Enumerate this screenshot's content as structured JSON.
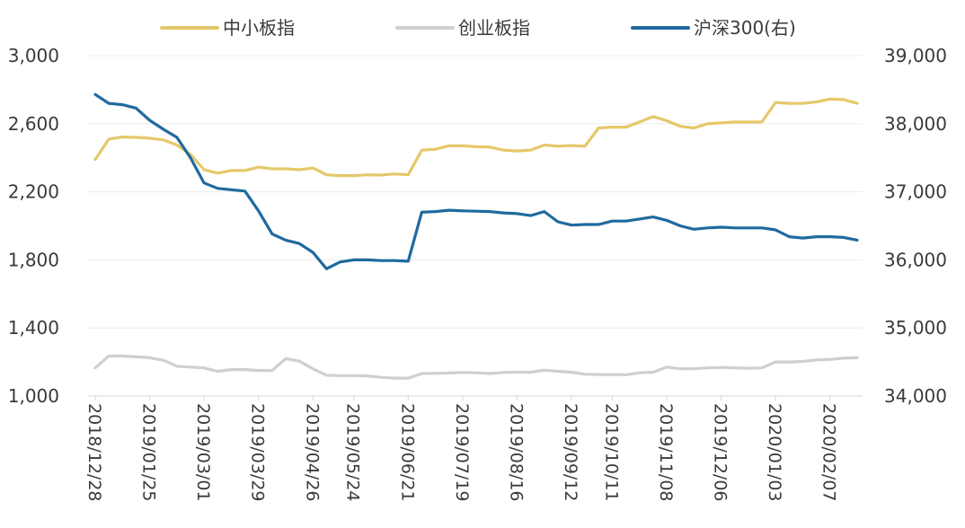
{
  "chart_data": {
    "type": "line",
    "x": [
      "2018/12/28",
      "2019/01/04",
      "2019/01/11",
      "2019/01/18",
      "2019/01/25",
      "2019/02/01",
      "2019/02/15",
      "2019/02/22",
      "2019/03/01",
      "2019/03/08",
      "2019/03/15",
      "2019/03/22",
      "2019/03/29",
      "2019/04/04",
      "2019/04/12",
      "2019/04/19",
      "2019/04/26",
      "2019/05/10",
      "2019/05/17",
      "2019/05/24",
      "2019/05/31",
      "2019/06/06",
      "2019/06/14",
      "2019/06/21",
      "2019/06/28",
      "2019/07/05",
      "2019/07/12",
      "2019/07/19",
      "2019/07/26",
      "2019/08/02",
      "2019/08/09",
      "2019/08/16",
      "2019/08/23",
      "2019/08/30",
      "2019/09/06",
      "2019/09/12",
      "2019/09/20",
      "2019/09/27",
      "2019/10/11",
      "2019/10/18",
      "2019/10/25",
      "2019/11/01",
      "2019/11/08",
      "2019/11/15",
      "2019/11/22",
      "2019/11/29",
      "2019/12/06",
      "2019/12/13",
      "2019/12/20",
      "2019/12/27",
      "2020/01/03",
      "2020/01/10",
      "2020/01/17",
      "2020/01/23",
      "2020/02/07",
      "2020/02/14",
      "2020/02/21"
    ],
    "x_tick_labels": [
      "2018/12/28",
      "2019/01/25",
      "2019/03/01",
      "2019/03/29",
      "2019/04/26",
      "2019/05/24",
      "2019/06/21",
      "2019/07/19",
      "2019/08/16",
      "2019/09/12",
      "2019/10/11",
      "2019/11/08",
      "2019/12/06",
      "2020/01/03",
      "2020/02/07"
    ],
    "series": [
      {
        "name": "中小板指",
        "axis": "left",
        "color": "#E5C86A",
        "values": [
          2390,
          2510,
          2522,
          2520,
          2515,
          2505,
          2475,
          2420,
          2330,
          2310,
          2325,
          2325,
          2345,
          2335,
          2335,
          2330,
          2340,
          2300,
          2295,
          2295,
          2300,
          2298,
          2305,
          2300,
          2445,
          2450,
          2470,
          2470,
          2465,
          2463,
          2445,
          2440,
          2445,
          2475,
          2468,
          2472,
          2468,
          2575,
          2580,
          2580,
          2610,
          2642,
          2618,
          2585,
          2575,
          2600,
          2605,
          2610,
          2610,
          2610,
          2725,
          2720,
          2720,
          2728,
          2745,
          2742,
          2720
        ]
      },
      {
        "name": "创业板指",
        "axis": "left",
        "color": "#CFCFCF",
        "values": [
          1165,
          1235,
          1235,
          1230,
          1225,
          1210,
          1175,
          1170,
          1165,
          1145,
          1155,
          1155,
          1150,
          1150,
          1220,
          1205,
          1160,
          1122,
          1120,
          1120,
          1118,
          1110,
          1105,
          1105,
          1132,
          1133,
          1135,
          1138,
          1136,
          1132,
          1138,
          1140,
          1140,
          1152,
          1145,
          1140,
          1128,
          1126,
          1126,
          1125,
          1136,
          1140,
          1170,
          1160,
          1160,
          1165,
          1168,
          1165,
          1163,
          1165,
          1200,
          1200,
          1203,
          1212,
          1215,
          1222,
          1225
        ]
      },
      {
        "name": "沪深300(右)",
        "axis": "right",
        "color": "#1F6A9E",
        "values": [
          38430,
          38300,
          38280,
          38230,
          38050,
          37920,
          37800,
          37500,
          37130,
          37050,
          37030,
          37010,
          36720,
          36380,
          36290,
          36240,
          36110,
          35870,
          35970,
          36000,
          36000,
          35990,
          35990,
          35980,
          36700,
          36710,
          36730,
          36720,
          36715,
          36710,
          36690,
          36680,
          36650,
          36710,
          36560,
          36510,
          36520,
          36520,
          36570,
          36570,
          36600,
          36630,
          36580,
          36500,
          36450,
          36470,
          36480,
          36470,
          36470,
          36470,
          36440,
          36340,
          36320,
          36340,
          36340,
          36330,
          36290
        ]
      }
    ],
    "left_axis": {
      "ylim": [
        1000,
        3000
      ],
      "ticks": [
        "1,000",
        "1,400",
        "1,800",
        "2,200",
        "2,600",
        "3,000"
      ],
      "tick_values": [
        1000,
        1400,
        1800,
        2200,
        2600,
        3000
      ]
    },
    "right_axis": {
      "ylim": [
        34000,
        39000
      ],
      "ticks": [
        "34,000",
        "35,000",
        "36,000",
        "37,000",
        "38,000",
        "39,000"
      ],
      "tick_values": [
        34000,
        35000,
        36000,
        37000,
        38000,
        39000
      ]
    },
    "grid": true,
    "legend_position": "top-center"
  }
}
